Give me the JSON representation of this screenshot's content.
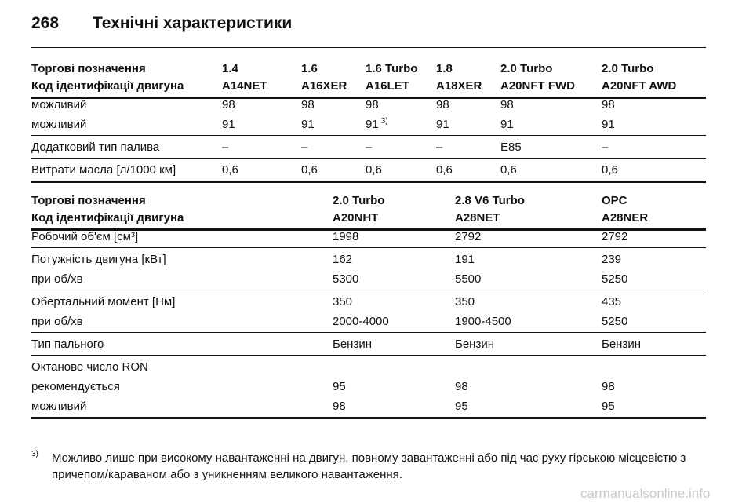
{
  "header": {
    "page": "268",
    "title": "Технічні характеристики"
  },
  "table1": {
    "header_rows": [
      [
        "Торгові позначення",
        "1.4",
        "1.6",
        "1.6 Turbo",
        "1.8",
        "2.0 Turbo",
        "2.0 Turbo"
      ],
      [
        "Код ідентифікації двигуна",
        "A14NET",
        "A16XER",
        "A16LET",
        "A18XER",
        "A20NFT FWD",
        "A20NFT AWD"
      ]
    ],
    "groups": [
      [
        [
          "можливий",
          "98",
          "98",
          "98",
          "98",
          "98",
          "98"
        ],
        [
          "можливий",
          "91",
          "91",
          "91",
          "91",
          "91",
          "91"
        ]
      ],
      [
        [
          "Додатковий тип палива",
          "–",
          "–",
          "–",
          "–",
          "E85",
          "–"
        ]
      ],
      [
        [
          "Витрати масла [л/1000 км]",
          "0,6",
          "0,6",
          "0,6",
          "0,6",
          "0,6",
          "0,6"
        ]
      ]
    ]
  },
  "table2": {
    "header_rows": [
      [
        "Торгові позначення",
        "2.0 Turbo",
        "2.8 V6 Turbo",
        "OPC"
      ],
      [
        "Код ідентифікації двигуна",
        "A20NHT",
        "A28NET",
        "A28NER"
      ]
    ],
    "groups": [
      [
        [
          "Робочий об'єм [см³]",
          "1998",
          "2792",
          "2792"
        ]
      ],
      [
        [
          "Потужність двигуна [кВт]",
          "162",
          "191",
          "239"
        ],
        [
          "при об/хв",
          "5300",
          "5500",
          "5250"
        ]
      ],
      [
        [
          "Обертальний момент [Нм]",
          "350",
          "350",
          "435"
        ],
        [
          "при об/хв",
          "2000-4000",
          "1900-4500",
          "5250"
        ]
      ],
      [
        [
          "Тип пального",
          "Бензин",
          "Бензин",
          "Бензин"
        ]
      ],
      [
        [
          "Октанове число RON"
        ],
        [
          "рекомендується",
          "95",
          "98",
          "98"
        ],
        [
          "можливий",
          "98",
          "95",
          "95"
        ]
      ]
    ]
  },
  "footnote": {
    "mark": "3)",
    "text": "Можливо лише при високому навантаженні на двигун, повному завантаженні або під час руху гірською місцевістю з причепом/караваном або з уникненням великого навантаження."
  },
  "watermark": "carmanualsonline.info"
}
